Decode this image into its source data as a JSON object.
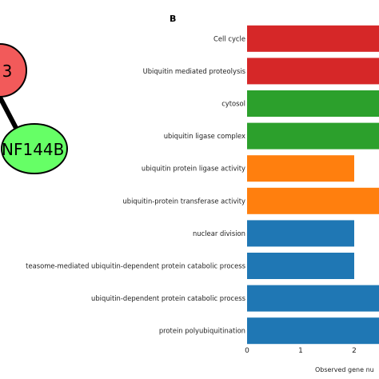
{
  "network": {
    "nodes": [
      {
        "label": "3",
        "color": "#f25a5a"
      },
      {
        "label": "NF144B",
        "color": "#66ff66"
      }
    ],
    "edge_color": "#000000"
  },
  "panel_letter": "B",
  "chart_data": {
    "type": "bar",
    "orientation": "horizontal",
    "categories": [
      "Cell cycle",
      "Ubiquitin mediated proteolysis",
      "cytosol",
      "ubiquitin ligase complex",
      "ubiquitin protein ligase activity",
      "ubiquitin-protein transferase activity",
      "nuclear division",
      "teasome-mediated ubiquitin-dependent protein catabolic process",
      "ubiquitin-dependent protein catabolic process",
      "protein polyubiquitination"
    ],
    "values": [
      3,
      3,
      3,
      3,
      2,
      3,
      2,
      2,
      3,
      3
    ],
    "bar_colors": [
      "#d62728",
      "#d62728",
      "#2ca02c",
      "#2ca02c",
      "#ff7f0e",
      "#ff7f0e",
      "#1f77b4",
      "#1f77b4",
      "#1f77b4",
      "#1f77b4"
    ],
    "xticks": [
      0,
      1,
      2
    ],
    "xlabel": "Observed gene nu",
    "xlim": [
      0,
      2.5
    ]
  }
}
